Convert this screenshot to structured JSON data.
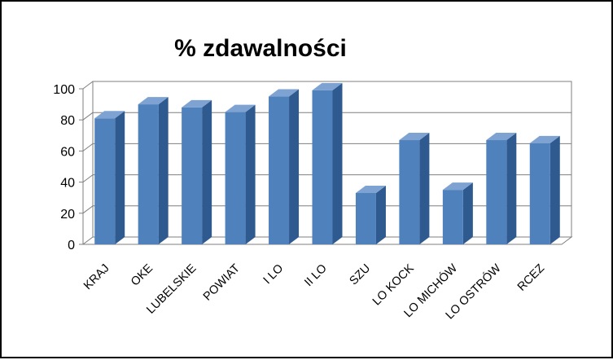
{
  "chart_data": {
    "type": "bar",
    "title": "% zdawalności",
    "xlabel": "",
    "ylabel": "",
    "categories": [
      "KRAJ",
      "OKE",
      "LUBELSKIE",
      "POWIAT",
      "I LO",
      "II LO",
      "SZU",
      "LO KOCK",
      "LO MICHÓW",
      "LO OSTRÓW",
      "RCEZ"
    ],
    "values": [
      81,
      90,
      88,
      85,
      95,
      99,
      33,
      67,
      35,
      67,
      65
    ],
    "ylim": [
      0,
      100
    ],
    "yticks": [
      0,
      20,
      40,
      60,
      80,
      100
    ],
    "grid": true,
    "legend": "none",
    "style": "3d-column",
    "colors": {
      "bar_front": "#4F81BD",
      "bar_top": "#7EA3D3",
      "bar_side": "#2F5A8F",
      "gridline": "#7F7F7F",
      "background": "#FFFFFF",
      "frame": "#000000"
    }
  }
}
